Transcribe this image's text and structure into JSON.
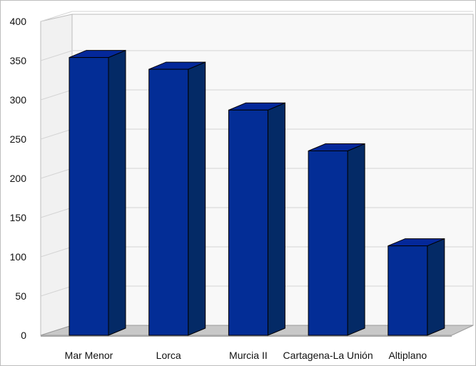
{
  "chart_data": {
    "type": "bar",
    "style": "3d",
    "title": "",
    "xlabel": "",
    "ylabel": "",
    "categories": [
      "Mar Menor",
      "Lorca",
      "Murcia II",
      "Cartagena-La Unión",
      "Altiplano"
    ],
    "values": [
      354,
      339,
      287,
      235,
      114
    ],
    "ylim": [
      0,
      400
    ],
    "yticks": [
      0,
      50,
      100,
      150,
      200,
      250,
      300,
      350,
      400
    ],
    "grid": true,
    "legend": "none",
    "colors": {
      "bar_front": "#032d96",
      "bar_top": "#04289a",
      "bar_side": "#042a66",
      "bar_outline": "#000000",
      "floor": "#c8c8c8",
      "wall": "#f8f8f8",
      "grid": "#d4d4d4"
    }
  }
}
